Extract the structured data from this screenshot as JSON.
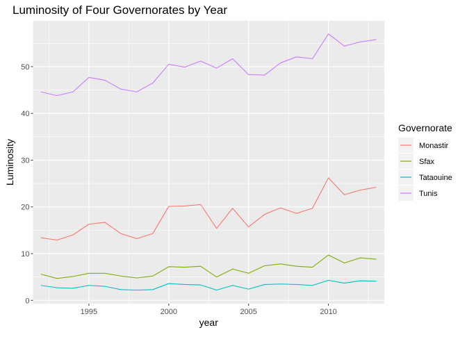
{
  "chart_data": {
    "type": "line",
    "title": "Luminosity of Four Governorates by Year",
    "xlabel": "year",
    "ylabel": "Luminosity",
    "xlim": [
      1991.5,
      2013.5
    ],
    "ylim": [
      -0.7,
      59.8
    ],
    "x_ticks": [
      1995,
      2000,
      2005,
      2010
    ],
    "y_ticks": [
      0,
      10,
      20,
      30,
      40,
      50
    ],
    "x_minor_ticks": [
      1992.5,
      1997.5,
      2002.5,
      2007.5,
      2012.5
    ],
    "y_minor_ticks": [
      5,
      15,
      25,
      35,
      45,
      55
    ],
    "grid": true,
    "panel_background": "#ebebeb",
    "grid_color": "#ffffff",
    "legend": {
      "title": "Governorate",
      "position": "right"
    },
    "x": [
      1992,
      1993,
      1994,
      1995,
      1996,
      1997,
      1998,
      1999,
      2000,
      2001,
      2002,
      2003,
      2004,
      2005,
      2006,
      2007,
      2008,
      2009,
      2010,
      2011,
      2012,
      2013
    ],
    "series": [
      {
        "name": "Monastir",
        "color": "#f8766d",
        "values": [
          13.4,
          12.9,
          14.0,
          16.3,
          16.7,
          14.3,
          13.2,
          14.3,
          20.1,
          20.2,
          20.5,
          15.4,
          19.7,
          15.7,
          18.4,
          19.8,
          18.6,
          19.7,
          26.2,
          22.6,
          23.6,
          24.2
        ]
      },
      {
        "name": "Sfax",
        "color": "#7cae00",
        "values": [
          5.6,
          4.7,
          5.1,
          5.8,
          5.8,
          5.2,
          4.8,
          5.2,
          7.2,
          7.1,
          7.3,
          5.0,
          6.7,
          5.8,
          7.4,
          7.8,
          7.3,
          7.1,
          9.7,
          8.0,
          9.1,
          8.8
        ]
      },
      {
        "name": "Tataouine",
        "color": "#00bfc4",
        "values": [
          3.2,
          2.7,
          2.6,
          3.2,
          3.0,
          2.3,
          2.2,
          2.3,
          3.6,
          3.4,
          3.3,
          2.2,
          3.2,
          2.4,
          3.4,
          3.5,
          3.4,
          3.2,
          4.3,
          3.7,
          4.2,
          4.1
        ]
      },
      {
        "name": "Tunis",
        "color": "#c77cff",
        "values": [
          44.6,
          43.8,
          44.6,
          47.7,
          47.1,
          45.2,
          44.6,
          46.5,
          50.5,
          49.9,
          51.2,
          49.7,
          51.7,
          48.3,
          48.2,
          50.8,
          52.1,
          51.7,
          57.0,
          54.4,
          55.3,
          55.8
        ]
      }
    ]
  }
}
